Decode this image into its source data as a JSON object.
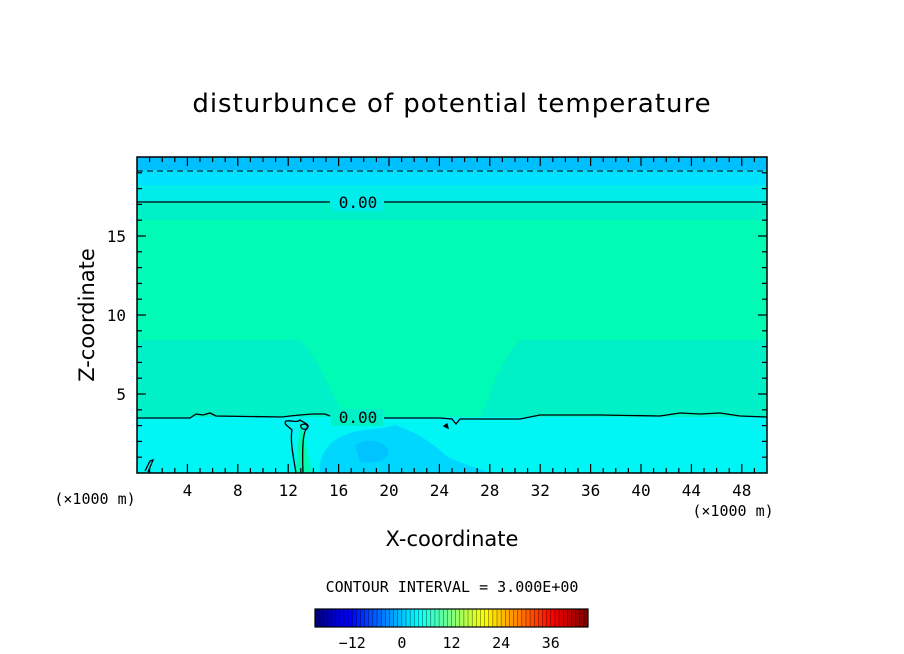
{
  "chart_data": {
    "type": "heatmap",
    "title": "disturbunce of potential temperature",
    "xlabel": "X-coordinate",
    "ylabel": "Z-coordinate",
    "x_unit_left": "(×1000 m)",
    "x_unit_right": "(×1000 m)",
    "xlim": [
      0,
      50
    ],
    "ylim": [
      0,
      20
    ],
    "x_ticks": [
      4,
      8,
      12,
      16,
      20,
      24,
      28,
      32,
      36,
      40,
      44,
      48
    ],
    "y_ticks": [
      5,
      10,
      15
    ],
    "contour_labels": [
      {
        "text": "0.00",
        "x": 17.2,
        "z": 17.1
      },
      {
        "text": "0.00",
        "x": 17.2,
        "z": 3.6
      }
    ],
    "colorbar": {
      "title": "CONTOUR INTERVAL = 3.000E+00",
      "range": [
        -21,
        45
      ],
      "ticks": [
        -12,
        0,
        12,
        24,
        36
      ]
    },
    "colors": {
      "top_band": "#00bfff",
      "upper_band": "#00e5ee",
      "core": "#00fcb4",
      "outer": "#00f0c8",
      "lower": "#00f5f5",
      "cool_patch": "#00d4ff"
    }
  }
}
